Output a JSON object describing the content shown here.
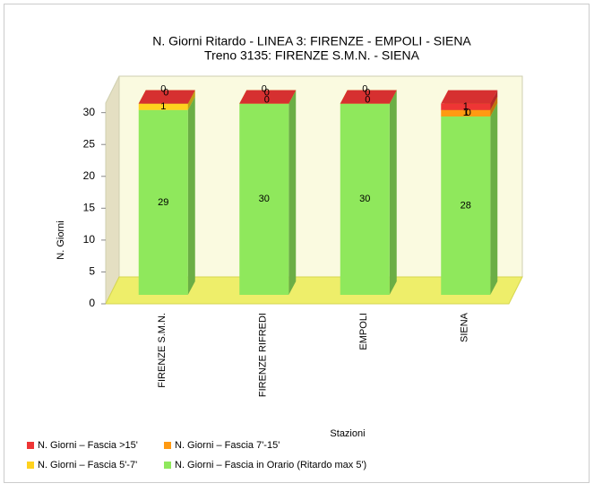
{
  "chart_data": {
    "type": "bar3d_stacked",
    "title": "N. Giorni Ritardo - LINEA 3: FIRENZE - EMPOLI - SIENA",
    "subtitle": "Treno 3135: FIRENZE S.M.N. - SIENA",
    "x_label": "Stazioni",
    "y_label": "N. Giorni",
    "categories": [
      "FIRENZE S.M.N.",
      "FIRENZE RIFREDI",
      "EMPOLI",
      "SIENA"
    ],
    "series": [
      {
        "name": "N. Giorni – Fascia in Orario (Ritardo max 5')",
        "color": "#8fe85c",
        "values": [
          29,
          30,
          30,
          28
        ]
      },
      {
        "name": "N. Giorni – Fascia 5'-7'",
        "color": "#ffd21e",
        "values": [
          1,
          0,
          0,
          0
        ]
      },
      {
        "name": "N. Giorni – Fascia 7'-15'",
        "color": "#ff9a12",
        "values": [
          0,
          0,
          0,
          1
        ]
      },
      {
        "name": "N. Giorni – Fascia >15'",
        "color": "#ee3535",
        "values": [
          0,
          0,
          0,
          1
        ]
      }
    ],
    "ylim": [
      0,
      31.5
    ],
    "yticks": [
      0,
      5,
      10,
      15,
      20,
      25,
      30
    ]
  }
}
